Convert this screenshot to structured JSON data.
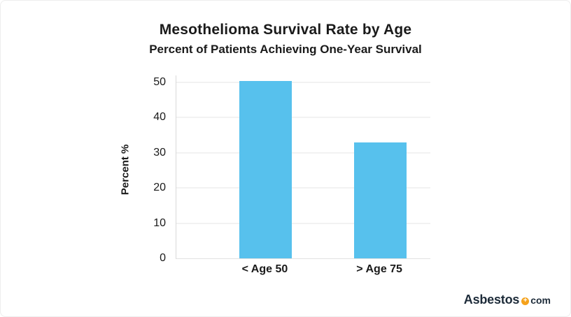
{
  "chart_data": {
    "type": "bar",
    "title": "Mesothelioma Survival Rate by Age",
    "subtitle": "Percent of Patients Achieving One-Year Survival",
    "ylabel": "Percent %",
    "xlabel": "",
    "categories": [
      "< Age 50",
      "> Age 75"
    ],
    "values": [
      50.5,
      33
    ],
    "yticks": [
      0,
      10,
      20,
      30,
      40,
      50
    ],
    "ylim": [
      0,
      52
    ],
    "grid": true,
    "legend": "none",
    "bar_color": "#57C1ED",
    "gridline_color": "#e6e6e6",
    "axis_line_color": "#d9d9d9",
    "text_color": "#1a1a1a"
  },
  "branding": {
    "logo_text": "Asbestos",
    "logo_plus": "+",
    "logo_suffix": "com",
    "logo_text_color": "#1D2B39",
    "logo_dot_color": "#F5A21B"
  }
}
